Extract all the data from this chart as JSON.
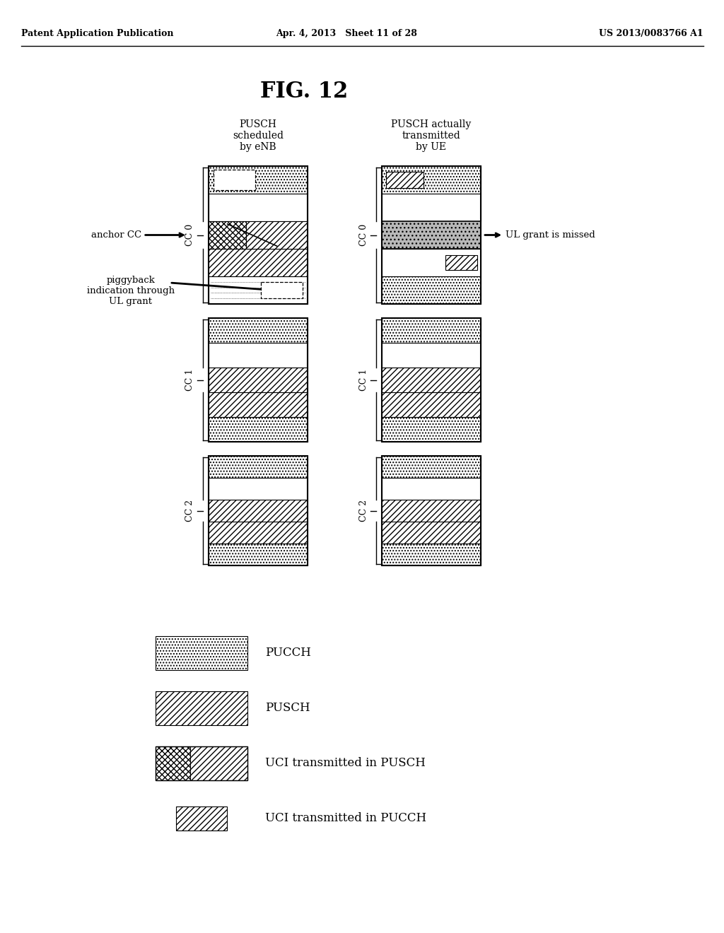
{
  "title": "FIG. 12",
  "header_left": "Patent Application Publication",
  "header_center": "Apr. 4, 2013   Sheet 11 of 28",
  "header_right": "US 2013/0083766 A1",
  "col_left_header": "PUSCH\nscheduled\nby eNB",
  "col_right_header": "PUSCH actually\ntransmitted\nby UE",
  "cc_labels": [
    "CC 0",
    "CC 1",
    "CC 2"
  ],
  "annotation_anchor": "anchor CC",
  "annotation_piggyback": "piggyback\nindication through\nUL grant",
  "annotation_ul": "UL grant is missed",
  "legend": [
    {
      "label": "PUCCH"
    },
    {
      "label": "PUSCH"
    },
    {
      "label": "UCI transmitted in PUSCH"
    },
    {
      "label": "UCI transmitted in PUCCH"
    }
  ],
  "background": "#ffffff"
}
